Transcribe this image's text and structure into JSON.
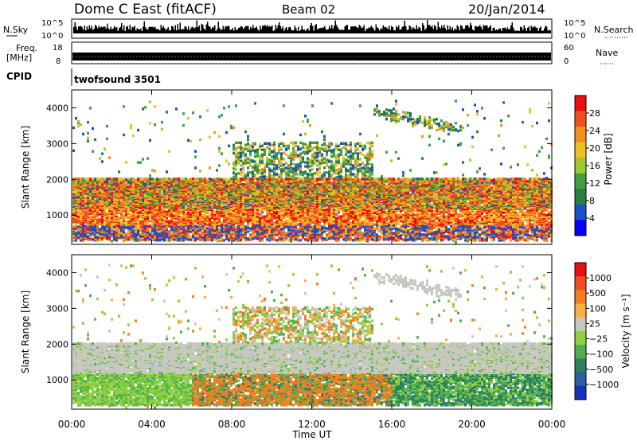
{
  "header": {
    "station": "Dome C East (fitACF)",
    "beam": "Beam 02",
    "date": "20/Jan/2014"
  },
  "top_panels": {
    "nsky_label": "N.Sky",
    "nsky_ticks": [
      "10^5",
      "10^0"
    ],
    "nsearch_label": "N.Search",
    "nsearch_ticks": [
      "10^5",
      "10^0"
    ],
    "freq_label_1": "Freq.",
    "freq_label_2": "[MHz]",
    "freq_ticks": [
      "18",
      "8"
    ],
    "nave_label": "Nave",
    "nave_ticks": [
      "60",
      "0"
    ],
    "cpid_label": "CPID",
    "cpid_value": "twofsound 3501"
  },
  "chart_data": [
    {
      "type": "heatmap",
      "name": "power",
      "ylabel": "Slant Range [km]",
      "yticks": [
        1000,
        2000,
        3000,
        4000
      ],
      "ylim": [
        180,
        4500
      ],
      "xlim": [
        0,
        24
      ],
      "colorbar_label": "Power [dB]",
      "colorbar_ticks": [
        "4",
        "8",
        "12",
        "16",
        "20",
        "24",
        "28"
      ],
      "colors": [
        "#0000ff",
        "#1a50c8",
        "#2a8040",
        "#40a040",
        "#a0c830",
        "#f0c020",
        "#f09020",
        "#f05020",
        "#e81010"
      ]
    },
    {
      "type": "heatmap",
      "name": "velocity",
      "ylabel": "Slant Range [km]",
      "yticks": [
        1000,
        2000,
        3000,
        4000
      ],
      "ylim": [
        180,
        4500
      ],
      "xlim": [
        0,
        24
      ],
      "colorbar_label": "Velocity [m s⁻¹]",
      "colorbar_ticks": [
        "1000",
        "500",
        "100",
        "25",
        "−25",
        "−100",
        "−500",
        "−1000"
      ],
      "colors": [
        "#1a30c0",
        "#2a60a0",
        "#2a8060",
        "#50b050",
        "#90d040",
        "#c8c8c0",
        "#f8b040",
        "#f08020",
        "#f05020",
        "#e81010"
      ]
    }
  ],
  "xaxis": {
    "ticks": [
      "00:00",
      "04:00",
      "08:00",
      "12:00",
      "16:00",
      "20:00",
      "00:00"
    ],
    "label": "Time UT"
  }
}
